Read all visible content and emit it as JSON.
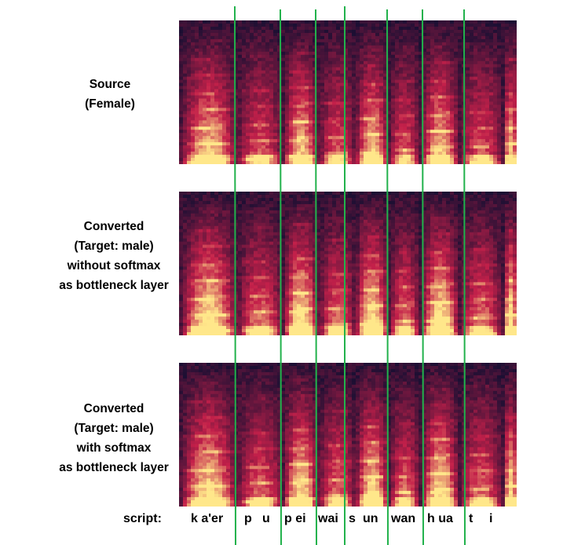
{
  "panels": {
    "source": {
      "lines": [
        "Source",
        "(Female)"
      ]
    },
    "converted_without_softmax": {
      "lines": [
        "Converted",
        "(Target: male)",
        "without softmax",
        "as bottleneck layer"
      ]
    },
    "converted_with_softmax": {
      "lines": [
        "Converted",
        "(Target: male)",
        "with softmax",
        "as bottleneck layer"
      ]
    }
  },
  "script": {
    "label": "script:",
    "syllables": [
      "k a'er",
      "p",
      "u",
      "p ei",
      "wai",
      "s",
      "un",
      "wan",
      "h ua",
      "t",
      "i"
    ]
  },
  "colors": {
    "boundary_line": "#22b24c",
    "spectrogram_low": "#1c0f33",
    "spectrogram_mid": "#c4204a",
    "spectrogram_high": "#ffe78a"
  }
}
